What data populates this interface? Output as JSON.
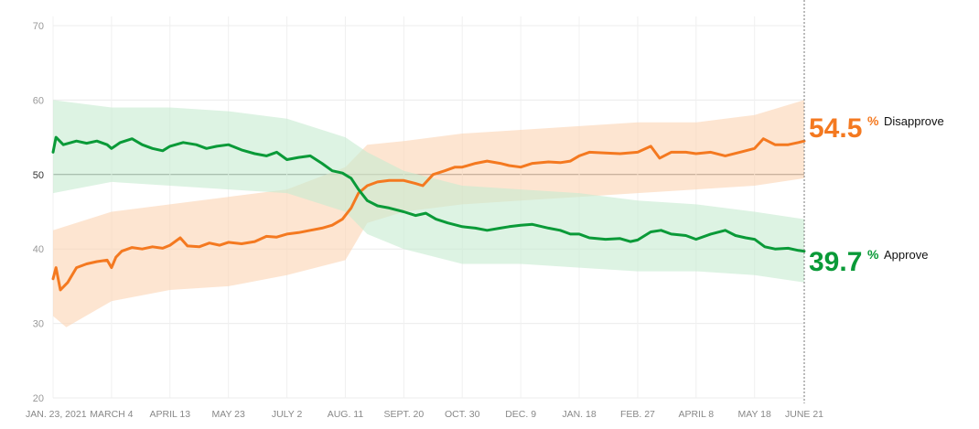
{
  "chart_data": {
    "type": "line",
    "x_start": "2021-01-23",
    "x_end": "2022-06-21",
    "ylim": [
      20,
      70
    ],
    "y_ticks": [
      "20",
      "30",
      "40",
      "50",
      "60",
      "70"
    ],
    "x_ticks": [
      {
        "date": "2021-01-23",
        "label": "JAN. 23, 2021"
      },
      {
        "date": "2021-03-04",
        "label": "MARCH 4"
      },
      {
        "date": "2021-04-13",
        "label": "APRIL 13"
      },
      {
        "date": "2021-05-23",
        "label": "MAY 23"
      },
      {
        "date": "2021-07-02",
        "label": "JULY 2"
      },
      {
        "date": "2021-08-11",
        "label": "AUG. 11"
      },
      {
        "date": "2021-09-20",
        "label": "SEPT. 20"
      },
      {
        "date": "2021-10-30",
        "label": "OCT. 30"
      },
      {
        "date": "2021-12-09",
        "label": "DEC. 9"
      },
      {
        "date": "2022-01-18",
        "label": "JAN. 18"
      },
      {
        "date": "2022-02-27",
        "label": "FEB. 27"
      },
      {
        "date": "2022-04-08",
        "label": "APRIL 8"
      },
      {
        "date": "2022-05-18",
        "label": "MAY 18"
      },
      {
        "date": "2022-06-21",
        "label": "JUNE 21"
      }
    ],
    "grid": true,
    "reference_line": 50,
    "series": [
      {
        "name": "Disapprove",
        "color": "#f47920",
        "band_color": "#fbd3b3",
        "final_value": "54.5",
        "points": [
          [
            "2021-01-23",
            36.0
          ],
          [
            "2021-01-25",
            37.5
          ],
          [
            "2021-01-28",
            34.5
          ],
          [
            "2021-02-02",
            35.5
          ],
          [
            "2021-02-08",
            37.5
          ],
          [
            "2021-02-15",
            38.0
          ],
          [
            "2021-02-22",
            38.3
          ],
          [
            "2021-03-01",
            38.5
          ],
          [
            "2021-03-04",
            37.5
          ],
          [
            "2021-03-07",
            38.9
          ],
          [
            "2021-03-11",
            39.7
          ],
          [
            "2021-03-18",
            40.2
          ],
          [
            "2021-03-25",
            40.0
          ],
          [
            "2021-04-01",
            40.3
          ],
          [
            "2021-04-08",
            40.1
          ],
          [
            "2021-04-13",
            40.5
          ],
          [
            "2021-04-20",
            41.5
          ],
          [
            "2021-04-25",
            40.4
          ],
          [
            "2021-05-03",
            40.3
          ],
          [
            "2021-05-10",
            40.8
          ],
          [
            "2021-05-17",
            40.5
          ],
          [
            "2021-05-23",
            40.9
          ],
          [
            "2021-06-01",
            40.7
          ],
          [
            "2021-06-10",
            41.0
          ],
          [
            "2021-06-18",
            41.7
          ],
          [
            "2021-06-25",
            41.6
          ],
          [
            "2021-07-02",
            42.0
          ],
          [
            "2021-07-10",
            42.2
          ],
          [
            "2021-07-18",
            42.5
          ],
          [
            "2021-07-26",
            42.8
          ],
          [
            "2021-08-02",
            43.2
          ],
          [
            "2021-08-09",
            44.0
          ],
          [
            "2021-08-15",
            45.5
          ],
          [
            "2021-08-20",
            47.5
          ],
          [
            "2021-08-26",
            48.5
          ],
          [
            "2021-09-02",
            49.0
          ],
          [
            "2021-09-10",
            49.2
          ],
          [
            "2021-09-20",
            49.2
          ],
          [
            "2021-09-28",
            48.8
          ],
          [
            "2021-10-03",
            48.5
          ],
          [
            "2021-10-10",
            50.0
          ],
          [
            "2021-10-18",
            50.5
          ],
          [
            "2021-10-25",
            51.0
          ],
          [
            "2021-10-30",
            51.0
          ],
          [
            "2021-11-08",
            51.5
          ],
          [
            "2021-11-16",
            51.8
          ],
          [
            "2021-11-25",
            51.5
          ],
          [
            "2021-12-01",
            51.2
          ],
          [
            "2021-12-09",
            51.0
          ],
          [
            "2021-12-17",
            51.5
          ],
          [
            "2021-12-28",
            51.7
          ],
          [
            "2022-01-05",
            51.6
          ],
          [
            "2022-01-12",
            51.8
          ],
          [
            "2022-01-18",
            52.5
          ],
          [
            "2022-01-25",
            53.0
          ],
          [
            "2022-02-05",
            52.9
          ],
          [
            "2022-02-15",
            52.8
          ],
          [
            "2022-02-27",
            53.0
          ],
          [
            "2022-03-08",
            53.8
          ],
          [
            "2022-03-14",
            52.2
          ],
          [
            "2022-03-22",
            53.0
          ],
          [
            "2022-04-01",
            53.0
          ],
          [
            "2022-04-08",
            52.8
          ],
          [
            "2022-04-18",
            53.0
          ],
          [
            "2022-04-28",
            52.5
          ],
          [
            "2022-05-08",
            53.0
          ],
          [
            "2022-05-18",
            53.5
          ],
          [
            "2022-05-24",
            54.8
          ],
          [
            "2022-06-01",
            54.0
          ],
          [
            "2022-06-10",
            54.0
          ],
          [
            "2022-06-17",
            54.3
          ],
          [
            "2022-06-21",
            54.5
          ]
        ],
        "band_high": [
          [
            "2021-01-23",
            42.5
          ],
          [
            "2021-03-04",
            45.0
          ],
          [
            "2021-04-13",
            46.0
          ],
          [
            "2021-05-23",
            47.0
          ],
          [
            "2021-07-02",
            48.0
          ],
          [
            "2021-08-11",
            51.0
          ],
          [
            "2021-08-26",
            54.0
          ],
          [
            "2021-09-20",
            54.5
          ],
          [
            "2021-10-30",
            55.5
          ],
          [
            "2021-12-09",
            56.0
          ],
          [
            "2022-01-18",
            56.5
          ],
          [
            "2022-02-27",
            57.0
          ],
          [
            "2022-04-08",
            57.0
          ],
          [
            "2022-05-18",
            58.0
          ],
          [
            "2022-06-21",
            60.0
          ]
        ],
        "band_low": [
          [
            "2021-01-23",
            31.0
          ],
          [
            "2021-02-01",
            29.5
          ],
          [
            "2021-03-04",
            33.0
          ],
          [
            "2021-04-13",
            34.5
          ],
          [
            "2021-05-23",
            35.0
          ],
          [
            "2021-07-02",
            36.5
          ],
          [
            "2021-08-11",
            38.5
          ],
          [
            "2021-08-26",
            43.5
          ],
          [
            "2021-09-20",
            45.0
          ],
          [
            "2021-10-30",
            46.0
          ],
          [
            "2021-12-09",
            46.5
          ],
          [
            "2022-01-18",
            47.0
          ],
          [
            "2022-02-27",
            47.5
          ],
          [
            "2022-04-08",
            48.0
          ],
          [
            "2022-05-18",
            48.5
          ],
          [
            "2022-06-21",
            49.5
          ]
        ]
      },
      {
        "name": "Approve",
        "color": "#0a9a38",
        "band_color": "#c6ebd1",
        "final_value": "39.7",
        "points": [
          [
            "2021-01-23",
            53.0
          ],
          [
            "2021-01-25",
            55.0
          ],
          [
            "2021-01-30",
            54.0
          ],
          [
            "2021-02-08",
            54.5
          ],
          [
            "2021-02-15",
            54.2
          ],
          [
            "2021-02-22",
            54.5
          ],
          [
            "2021-03-01",
            54.0
          ],
          [
            "2021-03-04",
            53.5
          ],
          [
            "2021-03-10",
            54.3
          ],
          [
            "2021-03-18",
            54.8
          ],
          [
            "2021-03-25",
            54.0
          ],
          [
            "2021-04-01",
            53.5
          ],
          [
            "2021-04-08",
            53.2
          ],
          [
            "2021-04-13",
            53.8
          ],
          [
            "2021-04-22",
            54.3
          ],
          [
            "2021-05-01",
            54.0
          ],
          [
            "2021-05-08",
            53.5
          ],
          [
            "2021-05-15",
            53.8
          ],
          [
            "2021-05-23",
            54.0
          ],
          [
            "2021-06-01",
            53.3
          ],
          [
            "2021-06-10",
            52.8
          ],
          [
            "2021-06-18",
            52.5
          ],
          [
            "2021-06-25",
            53.0
          ],
          [
            "2021-07-02",
            52.0
          ],
          [
            "2021-07-10",
            52.3
          ],
          [
            "2021-07-18",
            52.5
          ],
          [
            "2021-07-26",
            51.5
          ],
          [
            "2021-08-02",
            50.5
          ],
          [
            "2021-08-09",
            50.2
          ],
          [
            "2021-08-15",
            49.5
          ],
          [
            "2021-08-20",
            48.0
          ],
          [
            "2021-08-26",
            46.5
          ],
          [
            "2021-09-02",
            45.8
          ],
          [
            "2021-09-10",
            45.5
          ],
          [
            "2021-09-20",
            45.0
          ],
          [
            "2021-09-28",
            44.5
          ],
          [
            "2021-10-05",
            44.8
          ],
          [
            "2021-10-12",
            44.0
          ],
          [
            "2021-10-20",
            43.5
          ],
          [
            "2021-10-30",
            43.0
          ],
          [
            "2021-11-08",
            42.8
          ],
          [
            "2021-11-16",
            42.5
          ],
          [
            "2021-11-25",
            42.8
          ],
          [
            "2021-12-01",
            43.0
          ],
          [
            "2021-12-09",
            43.2
          ],
          [
            "2021-12-17",
            43.3
          ],
          [
            "2021-12-28",
            42.8
          ],
          [
            "2022-01-05",
            42.5
          ],
          [
            "2022-01-12",
            42.0
          ],
          [
            "2022-01-18",
            42.0
          ],
          [
            "2022-01-25",
            41.5
          ],
          [
            "2022-02-05",
            41.3
          ],
          [
            "2022-02-15",
            41.4
          ],
          [
            "2022-02-22",
            41.0
          ],
          [
            "2022-02-27",
            41.2
          ],
          [
            "2022-03-08",
            42.3
          ],
          [
            "2022-03-15",
            42.5
          ],
          [
            "2022-03-22",
            42.0
          ],
          [
            "2022-04-01",
            41.8
          ],
          [
            "2022-04-08",
            41.3
          ],
          [
            "2022-04-18",
            42.0
          ],
          [
            "2022-04-28",
            42.5
          ],
          [
            "2022-05-05",
            41.8
          ],
          [
            "2022-05-12",
            41.5
          ],
          [
            "2022-05-18",
            41.3
          ],
          [
            "2022-05-25",
            40.3
          ],
          [
            "2022-06-01",
            40.0
          ],
          [
            "2022-06-10",
            40.1
          ],
          [
            "2022-06-17",
            39.8
          ],
          [
            "2022-06-21",
            39.7
          ]
        ],
        "band_high": [
          [
            "2021-01-23",
            60.0
          ],
          [
            "2021-03-04",
            59.0
          ],
          [
            "2021-04-13",
            59.0
          ],
          [
            "2021-05-23",
            58.5
          ],
          [
            "2021-07-02",
            57.5
          ],
          [
            "2021-08-11",
            55.0
          ],
          [
            "2021-08-26",
            53.0
          ],
          [
            "2021-09-20",
            50.5
          ],
          [
            "2021-10-30",
            48.5
          ],
          [
            "2021-12-09",
            48.0
          ],
          [
            "2022-01-18",
            47.5
          ],
          [
            "2022-02-27",
            46.5
          ],
          [
            "2022-04-08",
            46.0
          ],
          [
            "2022-05-18",
            45.0
          ],
          [
            "2022-06-21",
            44.0
          ]
        ],
        "band_low": [
          [
            "2021-01-23",
            47.5
          ],
          [
            "2021-03-04",
            49.0
          ],
          [
            "2021-04-13",
            48.5
          ],
          [
            "2021-05-23",
            48.0
          ],
          [
            "2021-07-02",
            47.5
          ],
          [
            "2021-08-11",
            45.0
          ],
          [
            "2021-08-26",
            42.0
          ],
          [
            "2021-09-20",
            40.0
          ],
          [
            "2021-10-30",
            38.0
          ],
          [
            "2021-12-09",
            38.0
          ],
          [
            "2022-01-18",
            37.5
          ],
          [
            "2022-02-27",
            37.0
          ],
          [
            "2022-04-08",
            37.0
          ],
          [
            "2022-05-18",
            36.5
          ],
          [
            "2022-06-21",
            35.5
          ]
        ]
      }
    ]
  },
  "labels": {
    "disapprove_value": "54.5",
    "disapprove_pct": "%",
    "disapprove_label": "Disapprove",
    "approve_value": "39.7",
    "approve_pct": "%",
    "approve_label": "Approve"
  }
}
